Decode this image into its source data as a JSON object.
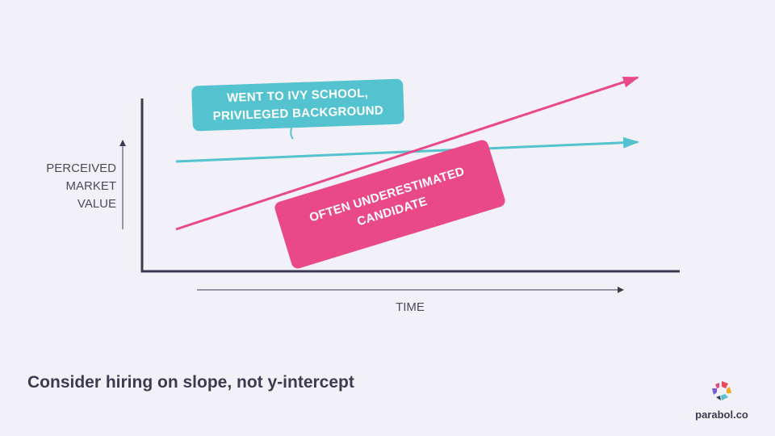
{
  "chart_data": {
    "type": "line",
    "ylabel": [
      "PERCEIVED",
      "MARKET",
      "VALUE"
    ],
    "xlabel": "TIME",
    "grid": false,
    "legend": "none",
    "series": [
      {
        "color": "#54c3cf",
        "label": [
          "WENT TO IVY SCHOOL,",
          "PRIVILEGED BACKGROUND"
        ],
        "points": [
          [
            0,
            0.68
          ],
          [
            1,
            0.8
          ]
        ]
      },
      {
        "color": "#e94a87",
        "label": [
          "OFTEN UNDERESTIMATED",
          "CANDIDATE"
        ],
        "points": [
          [
            0,
            0.26
          ],
          [
            1,
            1.2
          ]
        ]
      }
    ]
  },
  "footer": {
    "tagline": "Consider hiring on slope, not y-intercept",
    "brand": "parabol.co"
  },
  "colors": {
    "background": "#f2f1f8",
    "axis": "#3d3b4f",
    "teal": "#54c3cf",
    "pink": "#e94a87"
  }
}
